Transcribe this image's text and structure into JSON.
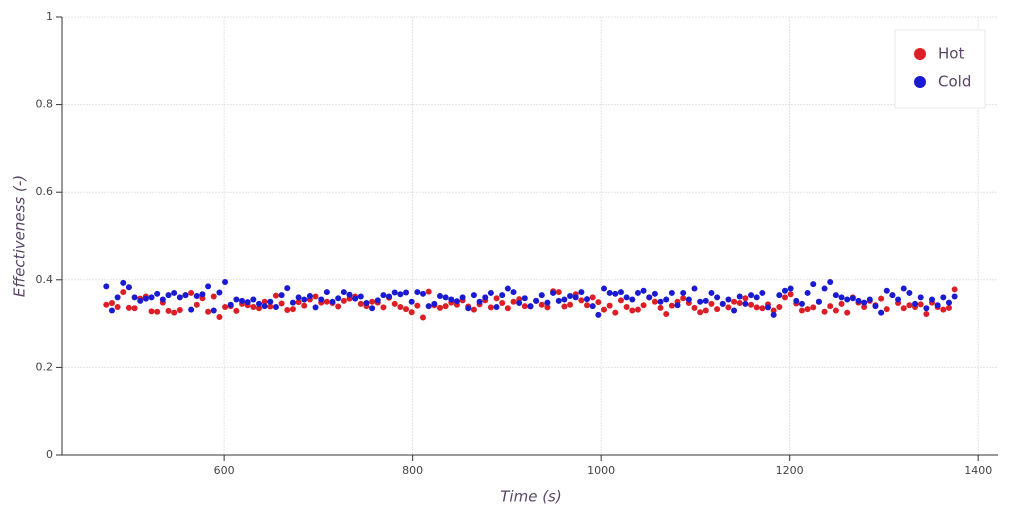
{
  "chart_data": {
    "type": "scatter",
    "xlabel": "Time (s)",
    "ylabel": "Effectiveness (-)",
    "xlim": [
      428,
      1421
    ],
    "ylim": [
      0,
      1
    ],
    "xticks": [
      600,
      800,
      1000,
      1200,
      1400
    ],
    "yticks": [
      0,
      0.2,
      0.4,
      0.6,
      0.8,
      1
    ],
    "grid": true,
    "legend": "top_right",
    "x": [
      475,
      481,
      487,
      493,
      499,
      505,
      511,
      517,
      523,
      529,
      535,
      541,
      547,
      553,
      559,
      565,
      571,
      577,
      583,
      589,
      595,
      601,
      607,
      613,
      619,
      625,
      631,
      637,
      643,
      649,
      655,
      661,
      667,
      673,
      679,
      685,
      691,
      697,
      703,
      709,
      715,
      721,
      727,
      733,
      739,
      745,
      751,
      757,
      763,
      769,
      775,
      781,
      787,
      793,
      799,
      805,
      811,
      817,
      823,
      829,
      835,
      841,
      847,
      853,
      859,
      865,
      871,
      877,
      883,
      889,
      895,
      901,
      907,
      913,
      919,
      925,
      931,
      937,
      943,
      949,
      955,
      961,
      967,
      973,
      979,
      985,
      991,
      997,
      1003,
      1009,
      1015,
      1021,
      1027,
      1033,
      1039,
      1045,
      1051,
      1057,
      1063,
      1069,
      1075,
      1081,
      1087,
      1093,
      1099,
      1105,
      1111,
      1117,
      1123,
      1129,
      1135,
      1141,
      1147,
      1153,
      1159,
      1165,
      1171,
      1177,
      1183,
      1189,
      1195,
      1201,
      1207,
      1213,
      1219,
      1225,
      1231,
      1237,
      1243,
      1249,
      1255,
      1261,
      1267,
      1273,
      1279,
      1285,
      1291,
      1297,
      1303,
      1309,
      1315,
      1321,
      1327,
      1333,
      1339,
      1345,
      1351,
      1357,
      1363,
      1369,
      1375
    ],
    "series": [
      {
        "name": "Hot",
        "color": "#dc1f26",
        "values": [
          0.343,
          0.347,
          0.338,
          0.372,
          0.336,
          0.335,
          0.357,
          0.362,
          0.328,
          0.327,
          0.348,
          0.329,
          0.325,
          0.331,
          0.365,
          0.37,
          0.343,
          0.358,
          0.327,
          0.362,
          0.315,
          0.338,
          0.34,
          0.329,
          0.345,
          0.342,
          0.338,
          0.335,
          0.35,
          0.339,
          0.364,
          0.346,
          0.331,
          0.333,
          0.349,
          0.341,
          0.355,
          0.362,
          0.348,
          0.35,
          0.347,
          0.339,
          0.352,
          0.357,
          0.362,
          0.345,
          0.34,
          0.35,
          0.348,
          0.337,
          0.359,
          0.345,
          0.338,
          0.333,
          0.326,
          0.341,
          0.314,
          0.373,
          0.342,
          0.336,
          0.34,
          0.348,
          0.343,
          0.353,
          0.339,
          0.332,
          0.344,
          0.353,
          0.337,
          0.358,
          0.347,
          0.335,
          0.35,
          0.356,
          0.34,
          0.339,
          0.352,
          0.343,
          0.337,
          0.374,
          0.372,
          0.339,
          0.343,
          0.367,
          0.353,
          0.342,
          0.36,
          0.349,
          0.332,
          0.341,
          0.325,
          0.353,
          0.338,
          0.33,
          0.332,
          0.342,
          0.36,
          0.35,
          0.336,
          0.322,
          0.341,
          0.35,
          0.358,
          0.347,
          0.336,
          0.326,
          0.33,
          0.345,
          0.333,
          0.345,
          0.337,
          0.35,
          0.347,
          0.358,
          0.343,
          0.337,
          0.335,
          0.344,
          0.33,
          0.338,
          0.36,
          0.367,
          0.346,
          0.33,
          0.333,
          0.337,
          0.35,
          0.327,
          0.34,
          0.33,
          0.345,
          0.325,
          0.36,
          0.348,
          0.338,
          0.352,
          0.342,
          0.357,
          0.333,
          0.365,
          0.347,
          0.335,
          0.342,
          0.338,
          0.344,
          0.322,
          0.348,
          0.338,
          0.332,
          0.336,
          0.378
        ]
      },
      {
        "name": "Cold",
        "color": "#1a1ad0",
        "values": [
          0.385,
          0.33,
          0.36,
          0.393,
          0.383,
          0.36,
          0.352,
          0.357,
          0.36,
          0.368,
          0.355,
          0.365,
          0.37,
          0.36,
          0.365,
          0.332,
          0.363,
          0.367,
          0.385,
          0.33,
          0.371,
          0.395,
          0.343,
          0.355,
          0.352,
          0.349,
          0.355,
          0.345,
          0.34,
          0.35,
          0.338,
          0.365,
          0.381,
          0.348,
          0.36,
          0.355,
          0.363,
          0.337,
          0.355,
          0.372,
          0.35,
          0.358,
          0.372,
          0.366,
          0.357,
          0.362,
          0.347,
          0.335,
          0.353,
          0.365,
          0.362,
          0.371,
          0.367,
          0.371,
          0.35,
          0.372,
          0.368,
          0.34,
          0.345,
          0.363,
          0.36,
          0.355,
          0.351,
          0.36,
          0.335,
          0.365,
          0.35,
          0.36,
          0.37,
          0.338,
          0.365,
          0.38,
          0.372,
          0.347,
          0.358,
          0.34,
          0.352,
          0.365,
          0.348,
          0.37,
          0.352,
          0.355,
          0.363,
          0.36,
          0.372,
          0.356,
          0.34,
          0.32,
          0.38,
          0.37,
          0.368,
          0.372,
          0.36,
          0.355,
          0.37,
          0.375,
          0.36,
          0.368,
          0.35,
          0.355,
          0.37,
          0.342,
          0.37,
          0.355,
          0.38,
          0.35,
          0.352,
          0.37,
          0.36,
          0.345,
          0.355,
          0.33,
          0.362,
          0.345,
          0.365,
          0.36,
          0.37,
          0.337,
          0.32,
          0.365,
          0.375,
          0.38,
          0.352,
          0.345,
          0.37,
          0.39,
          0.35,
          0.38,
          0.395,
          0.365,
          0.36,
          0.355,
          0.358,
          0.352,
          0.348,
          0.355,
          0.34,
          0.325,
          0.375,
          0.365,
          0.355,
          0.38,
          0.37,
          0.345,
          0.36,
          0.335,
          0.355,
          0.342,
          0.36,
          0.348,
          0.362
        ]
      }
    ]
  }
}
